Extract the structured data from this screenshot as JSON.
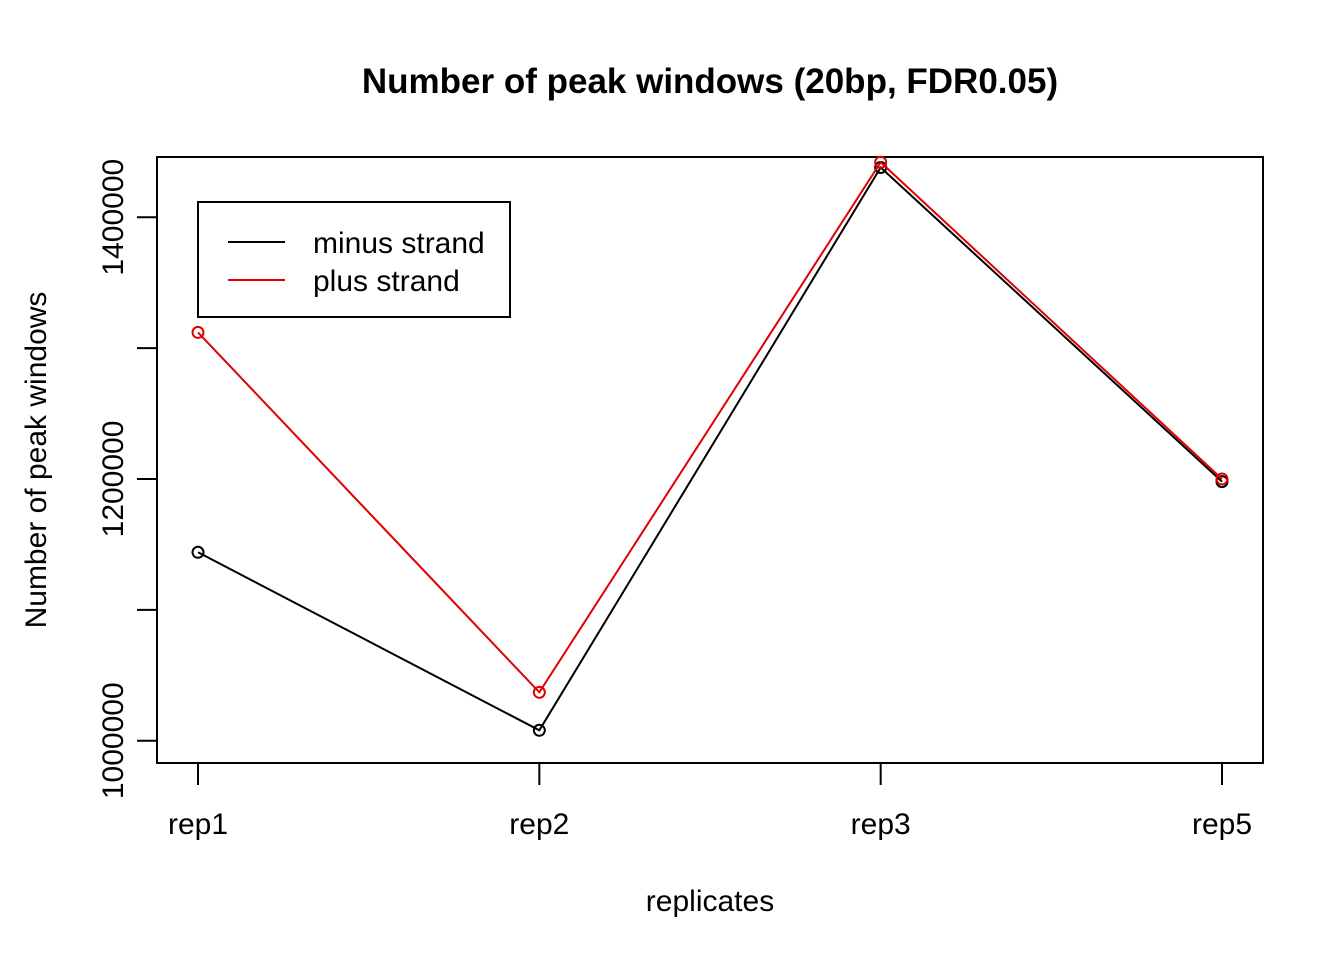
{
  "chart_data": {
    "type": "line",
    "title": "Number of peak windows (20bp, FDR0.05)",
    "xlabel": "replicates",
    "ylabel": "Number of peak windows",
    "categories": [
      "rep1",
      "rep2",
      "rep3",
      "rep5"
    ],
    "ylim": [
      983000,
      1446000
    ],
    "y_ticks": [
      1000000,
      1200000,
      1400000
    ],
    "y_tick_labels": [
      "1000000",
      "1200000",
      "1400000"
    ],
    "y_minor_ticks": [
      1100000,
      1300000
    ],
    "grid": false,
    "legend_position": "top-left",
    "series": [
      {
        "name": "minus strand",
        "color": "#000000",
        "values": [
          1144000,
          1008000,
          1438000,
          1198000
        ]
      },
      {
        "name": "plus strand",
        "color": "#e00000",
        "values": [
          1312000,
          1037000,
          1442000,
          1200000
        ]
      }
    ]
  }
}
